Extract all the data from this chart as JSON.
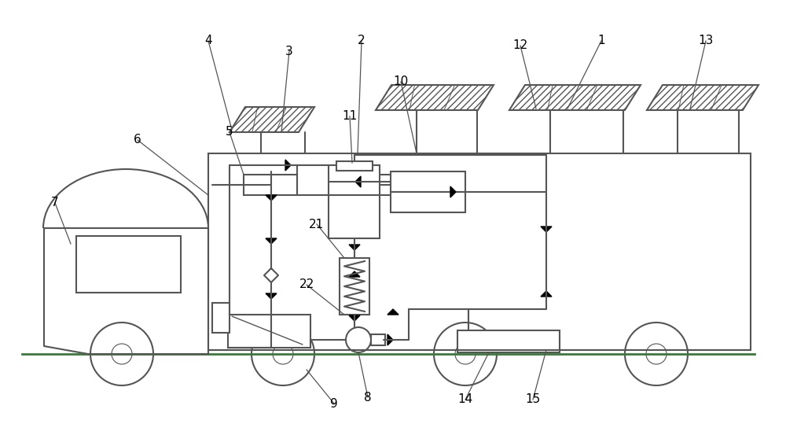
{
  "bg": "#ffffff",
  "lc": "#555555",
  "lw": 1.5,
  "fs": 11,
  "fc": "#000000"
}
